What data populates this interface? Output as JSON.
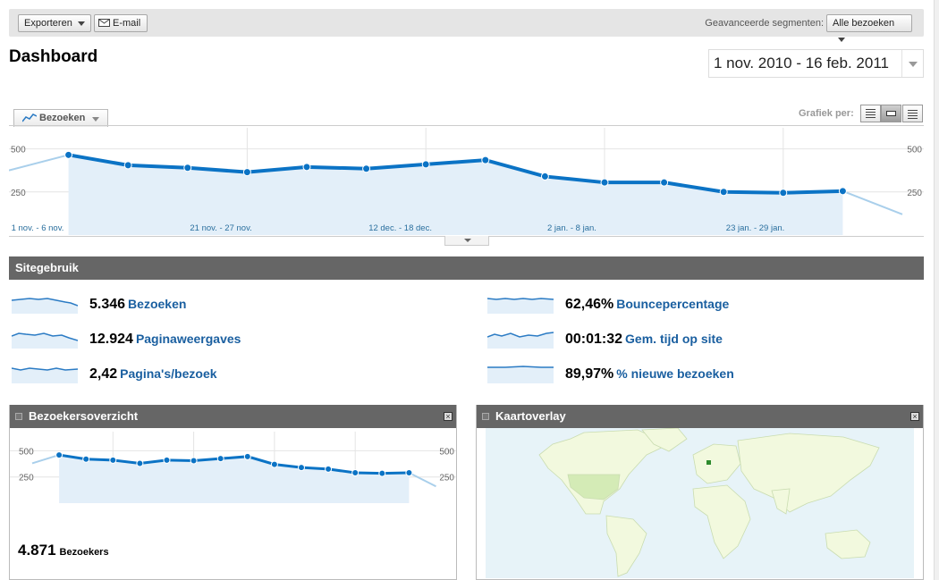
{
  "toolbar": {
    "export_label": "Exporteren",
    "email_label": "E-mail",
    "segments_label": "Geavanceerde segmenten:",
    "segments_value": "Alle bezoeken"
  },
  "page_title": "Dashboard",
  "date_range": "1 nov. 2010 - 16 feb. 2011",
  "metric_selector": "Bezoeken",
  "graph_by_label": "Grafiek per:",
  "chart_data": [
    {
      "type": "area",
      "y_ticks": [
        "500",
        "250"
      ],
      "ylim": [
        0,
        560
      ],
      "x_labels": [
        "1 nov. - 6 nov.",
        "21 nov. - 27 nov.",
        "12 dec. - 18 dec.",
        "2 jan. - 8 jan.",
        "23 jan. - 29 jan."
      ],
      "values": [
        375,
        465,
        405,
        390,
        365,
        395,
        385,
        410,
        435,
        340,
        305,
        305,
        250,
        245,
        255,
        120
      ],
      "grid": true
    },
    {
      "type": "area",
      "y_ticks": [
        "500",
        "250"
      ],
      "ylim": [
        0,
        580
      ],
      "values": [
        380,
        460,
        420,
        410,
        380,
        410,
        405,
        425,
        445,
        370,
        340,
        325,
        290,
        285,
        290,
        160
      ],
      "grid": true
    }
  ],
  "site_usage": {
    "title": "Sitegebruik",
    "metrics": [
      {
        "value": "5.346",
        "label": "Bezoeken"
      },
      {
        "value": "12.924",
        "label": "Paginaweergaves"
      },
      {
        "value": "2,42",
        "label": "Pagina's/bezoek"
      },
      {
        "value": "62,46%",
        "label": "Bouncepercentage"
      },
      {
        "value": "00:01:32",
        "label": "Gem. tijd op site"
      },
      {
        "value": "89,97%",
        "label": "% nieuwe bezoeken"
      }
    ]
  },
  "visitors_panel": {
    "title": "Bezoekersoverzicht",
    "count": "4.871",
    "count_label": "Bezoekers"
  },
  "map_panel": {
    "title": "Kaartoverlay"
  },
  "colors": {
    "line": "#0b73c5",
    "fill": "#e3eff9",
    "header": "#666666",
    "link": "#1a5fa0"
  }
}
